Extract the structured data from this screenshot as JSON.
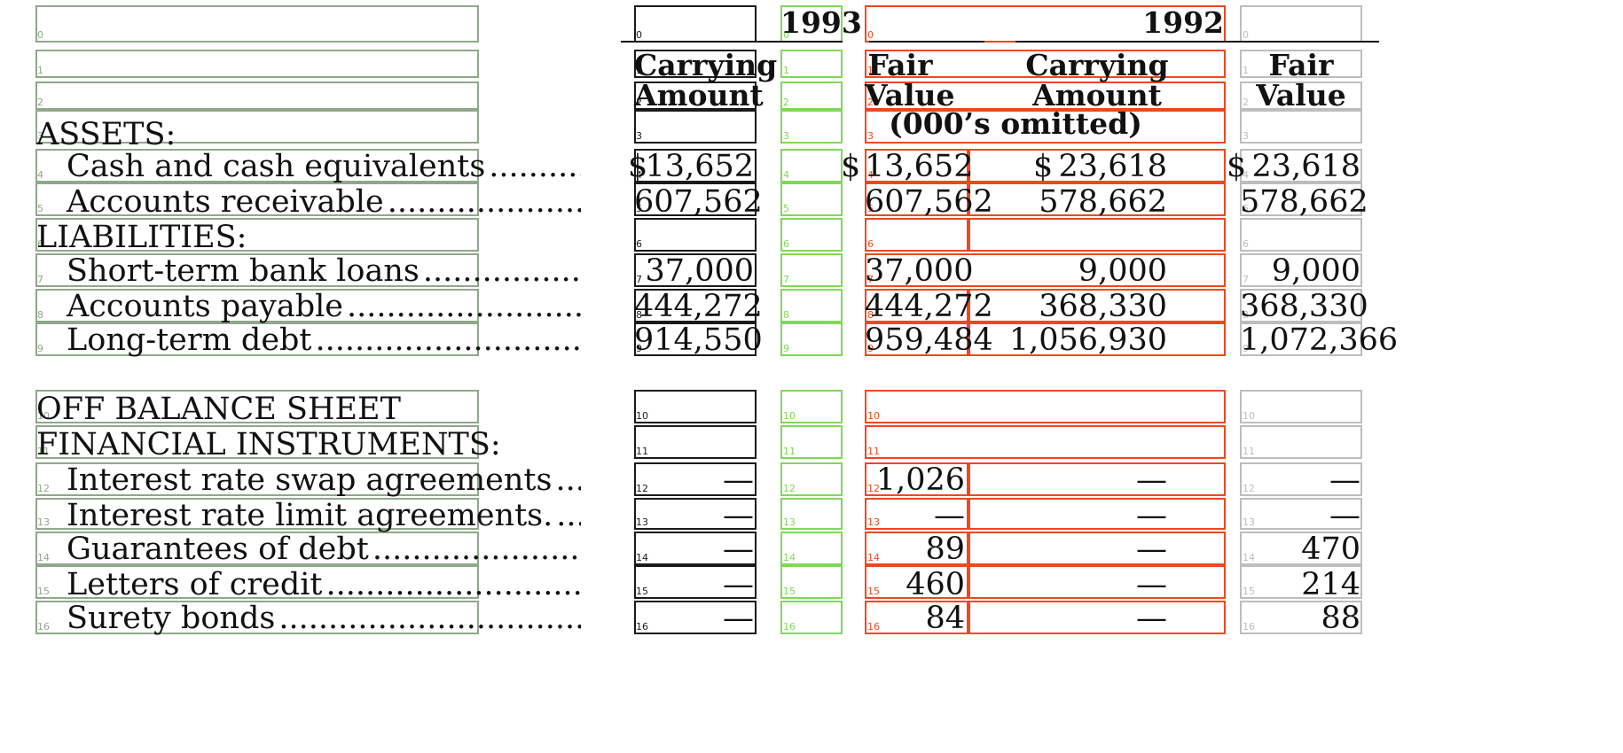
{
  "headers": {
    "year_1993": "1993",
    "year_1992": "1992",
    "carrying_1": "Carrying",
    "amount_1": "Amount",
    "fair_1": "Fair",
    "value_1": "Value",
    "carrying_2": "Carrying",
    "amount_2": "Amount",
    "fair_2": "Fair",
    "value_2": "Value",
    "omitted": "(000’s omitted)"
  },
  "rows": [
    {
      "label": "ASSETS:",
      "indent": false,
      "dots": false
    },
    {
      "label": "Cash and cash equivalents",
      "indent": true,
      "dots": true,
      "ca93": "13,652",
      "fv93": "13,652",
      "ca92": "23,618",
      "fv92": "23,618",
      "dollar": "$"
    },
    {
      "label": "Accounts receivable",
      "indent": true,
      "dots": true,
      "ca93": "607,562",
      "fv93": "607,562",
      "ca92": "578,662",
      "fv92": "578,662"
    },
    {
      "label": "LIABILITIES:",
      "indent": false,
      "dots": false
    },
    {
      "label": "Short-term bank loans",
      "indent": true,
      "dots": true,
      "ca93": "37,000",
      "fv93": "37,000",
      "ca92": "9,000",
      "fv92": "9,000"
    },
    {
      "label": "Accounts payable",
      "indent": true,
      "dots": true,
      "ca93": "444,272",
      "fv93": "444,272",
      "ca92": "368,330",
      "fv92": "368,330"
    },
    {
      "label": "Long-term debt",
      "indent": true,
      "dots": true,
      "ca93": "914,550",
      "fv93": "959,484",
      "ca92": "1,056,930",
      "fv92": "1,072,366"
    },
    {
      "label": "OFF BALANCE SHEET",
      "indent": false,
      "dots": false
    },
    {
      "label": "FINANCIAL INSTRUMENTS:",
      "indent": false,
      "dots": false
    },
    {
      "label": "Interest rate swap agreements",
      "indent": true,
      "dots": true,
      "ca93": "—",
      "fv93": "1,026",
      "ca92": "—",
      "fv92": "—"
    },
    {
      "label": "Interest rate limit agreements.",
      "indent": true,
      "dots": true,
      "ca93": "—",
      "fv93": "—",
      "ca92": "—",
      "fv92": "—"
    },
    {
      "label": "Guarantees of debt",
      "indent": true,
      "dots": true,
      "ca93": "—",
      "fv93": "89",
      "ca92": "—",
      "fv92": "470"
    },
    {
      "label": "Letters of credit",
      "indent": true,
      "dots": true,
      "ca93": "—",
      "fv93": "460",
      "ca92": "—",
      "fv92": "214"
    },
    {
      "label": "Surety bonds",
      "indent": true,
      "dots": true,
      "ca93": "—",
      "fv93": "84",
      "ca92": "—",
      "fv92": "88"
    }
  ],
  "box_indices": [
    "0",
    "1",
    "2",
    "3",
    "4",
    "5",
    "6",
    "7",
    "8",
    "9",
    "10",
    "11",
    "12",
    "13",
    "14",
    "15",
    "16"
  ]
}
